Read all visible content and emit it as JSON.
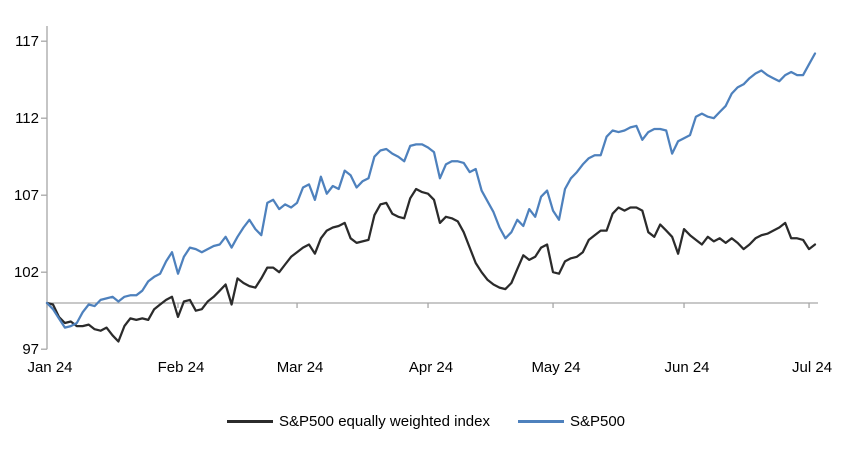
{
  "chart_data": {
    "type": "line",
    "title": "",
    "grid": false,
    "legend_position": "bottom",
    "x_axis": {
      "tick_labels": [
        "Jan 24",
        "Feb 24",
        "Mar 24",
        "Apr 24",
        "May 24",
        "Jun 24",
        "Jul 24"
      ],
      "tick_days": [
        0,
        22,
        42,
        64,
        85,
        107,
        128
      ],
      "n_points": 130
    },
    "y_axis": {
      "ticks": [
        97,
        102,
        107,
        112,
        117
      ],
      "ylim": [
        97,
        117.5
      ],
      "baseline": 100
    },
    "colors": {
      "axis": "#a6a6a6",
      "text": "#000000"
    },
    "series": [
      {
        "name": "S&P500 equally weighted index",
        "color": "#2b2b2b",
        "values": [
          100.0,
          99.9,
          99.1,
          98.7,
          98.8,
          98.5,
          98.5,
          98.6,
          98.3,
          98.2,
          98.4,
          97.9,
          97.5,
          98.5,
          99.0,
          98.9,
          99.0,
          98.9,
          99.6,
          99.9,
          100.2,
          100.4,
          99.1,
          100.1,
          100.2,
          99.5,
          99.6,
          100.1,
          100.4,
          100.8,
          101.2,
          99.9,
          101.6,
          101.3,
          101.1,
          101.0,
          101.6,
          102.3,
          102.3,
          102.0,
          102.5,
          103.0,
          103.3,
          103.6,
          103.8,
          103.2,
          104.2,
          104.7,
          104.9,
          105.0,
          105.2,
          104.2,
          103.9,
          104.0,
          104.1,
          105.7,
          106.4,
          106.5,
          105.8,
          105.6,
          105.5,
          106.8,
          107.4,
          107.2,
          107.1,
          106.7,
          105.2,
          105.6,
          105.5,
          105.3,
          104.6,
          103.6,
          102.6,
          102.0,
          101.5,
          101.2,
          101.0,
          100.9,
          101.3,
          102.2,
          103.1,
          102.8,
          103.0,
          103.6,
          103.8,
          102.0,
          101.9,
          102.7,
          102.9,
          103.0,
          103.3,
          104.1,
          104.4,
          104.7,
          104.7,
          105.8,
          106.2,
          106.0,
          106.2,
          106.2,
          106.0,
          104.6,
          104.3,
          105.1,
          104.7,
          104.3,
          103.2,
          104.8,
          104.4,
          104.1,
          103.8,
          104.3,
          104.0,
          104.2,
          103.9,
          104.2,
          103.9,
          103.5,
          103.8,
          104.2,
          104.4,
          104.5,
          104.7,
          104.9,
          105.2,
          104.2,
          104.2,
          104.1,
          103.5,
          103.8
        ]
      },
      {
        "name": "S&P500",
        "color": "#4e81bd",
        "values": [
          100.0,
          99.6,
          99.0,
          98.4,
          98.5,
          98.7,
          99.4,
          99.9,
          99.8,
          100.2,
          100.3,
          100.4,
          100.1,
          100.4,
          100.5,
          100.5,
          100.8,
          101.4,
          101.7,
          101.9,
          102.7,
          103.3,
          101.9,
          103.0,
          103.6,
          103.5,
          103.3,
          103.5,
          103.7,
          103.8,
          104.3,
          103.6,
          104.3,
          104.9,
          105.4,
          104.8,
          104.4,
          106.5,
          106.7,
          106.1,
          106.4,
          106.2,
          106.5,
          107.5,
          107.7,
          106.7,
          108.2,
          107.1,
          107.6,
          107.4,
          108.6,
          108.3,
          107.5,
          107.9,
          108.1,
          109.5,
          109.9,
          110.0,
          109.7,
          109.5,
          109.2,
          110.2,
          110.3,
          110.3,
          110.1,
          109.8,
          108.1,
          109.0,
          109.2,
          109.2,
          109.1,
          108.5,
          108.7,
          107.3,
          106.6,
          105.9,
          104.9,
          104.2,
          104.6,
          105.4,
          105.0,
          106.1,
          105.6,
          106.9,
          107.3,
          106.0,
          105.4,
          107.4,
          108.1,
          108.5,
          109.0,
          109.4,
          109.6,
          109.6,
          110.8,
          111.2,
          111.1,
          111.2,
          111.4,
          111.5,
          110.6,
          111.1,
          111.3,
          111.3,
          111.2,
          109.7,
          110.5,
          110.7,
          110.9,
          112.1,
          112.3,
          112.1,
          112.0,
          112.4,
          112.8,
          113.6,
          114.0,
          114.2,
          114.6,
          114.9,
          115.1,
          114.8,
          114.6,
          114.4,
          114.8,
          115.0,
          114.8,
          114.8,
          115.5,
          116.2
        ]
      }
    ]
  }
}
